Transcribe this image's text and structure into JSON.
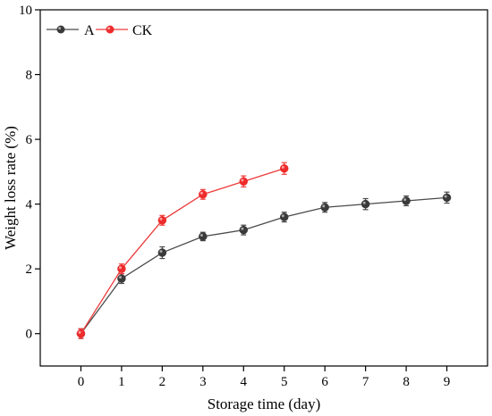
{
  "chart_data": {
    "type": "line",
    "xlabel": "Storage time (day)",
    "ylabel": "Weight loss rate (%)",
    "xlim": [
      -1,
      10
    ],
    "ylim": [
      -1,
      10
    ],
    "x_ticks": [
      0,
      1,
      2,
      3,
      4,
      5,
      6,
      7,
      8,
      9
    ],
    "y_ticks": [
      0,
      2,
      4,
      6,
      8,
      10
    ],
    "grid": false,
    "legend_position": "top-left",
    "series": [
      {
        "name": "A",
        "color": "#4a4a4a",
        "marker_color": "#3a3a3a",
        "x": [
          0,
          1,
          2,
          3,
          4,
          5,
          6,
          7,
          8,
          9
        ],
        "values": [
          0.0,
          1.7,
          2.5,
          3.0,
          3.2,
          3.6,
          3.9,
          4.0,
          4.1,
          4.2
        ],
        "errors": [
          0.15,
          0.15,
          0.18,
          0.13,
          0.15,
          0.15,
          0.15,
          0.17,
          0.15,
          0.17
        ]
      },
      {
        "name": "CK",
        "color": "#ee3a3a",
        "marker_color": "#ee2b2b",
        "x": [
          0,
          1,
          2,
          3,
          4,
          5
        ],
        "values": [
          0.0,
          2.0,
          3.5,
          4.3,
          4.7,
          5.1
        ],
        "errors": [
          0.15,
          0.15,
          0.15,
          0.15,
          0.17,
          0.18
        ]
      }
    ]
  }
}
